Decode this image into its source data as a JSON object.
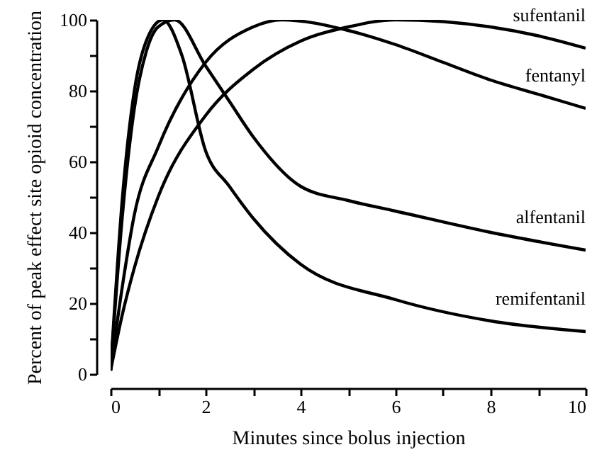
{
  "chart_data": {
    "type": "line",
    "xlabel": "Minutes since bolus injection",
    "ylabel": "Percent of peak effect site opioid concentration",
    "xlim": [
      0,
      10
    ],
    "ylim": [
      0,
      100
    ],
    "xticks": [
      0,
      {
        "value": 1,
        "label": null
      },
      2,
      {
        "value": 3,
        "label": null
      },
      4,
      {
        "value": 5,
        "label": null
      },
      6,
      {
        "value": 7,
        "label": null
      },
      8,
      {
        "value": 9,
        "label": null
      },
      10
    ],
    "yticks": [
      0,
      {
        "value": 10,
        "label": null
      },
      20,
      {
        "value": 30,
        "label": null
      },
      40,
      {
        "value": 50,
        "label": null
      },
      60,
      {
        "value": 70,
        "label": null
      },
      80,
      {
        "value": 90,
        "label": null
      },
      100
    ],
    "grid": false,
    "line_style": "solid",
    "series": [
      {
        "name": "sufentanil",
        "color": "#000000",
        "x": [
          0,
          0.25,
          0.5,
          1,
          2,
          3,
          4,
          5,
          6,
          7,
          8,
          9,
          10
        ],
        "values": [
          1,
          17,
          30,
          50,
          73,
          86,
          94,
          98,
          100,
          99.5,
          98,
          95.5,
          92
        ]
      },
      {
        "name": "fentanyl",
        "color": "#000000",
        "x": [
          0,
          0.25,
          0.5,
          1,
          2,
          3,
          3.6,
          5,
          6,
          7,
          8,
          9,
          10
        ],
        "values": [
          1,
          25,
          45,
          64,
          88,
          98,
          100,
          97,
          93,
          88,
          83,
          79,
          75
        ]
      },
      {
        "name": "alfentanil",
        "color": "#000000",
        "x": [
          0,
          0.25,
          0.5,
          0.75,
          1,
          1.35,
          2,
          2.5,
          3,
          4,
          5,
          6,
          8,
          10
        ],
        "values": [
          1,
          45,
          75,
          91,
          98,
          100,
          87,
          77,
          67,
          53,
          49,
          46,
          40,
          35
        ]
      },
      {
        "name": "remifentanil",
        "color": "#000000",
        "x": [
          0,
          0.25,
          0.5,
          0.75,
          1.1,
          1.5,
          2,
          2.5,
          3,
          4,
          6,
          8,
          10
        ],
        "values": [
          1,
          50,
          80,
          94,
          100,
          90,
          63,
          53,
          44,
          31,
          21,
          15,
          12
        ]
      }
    ]
  }
}
